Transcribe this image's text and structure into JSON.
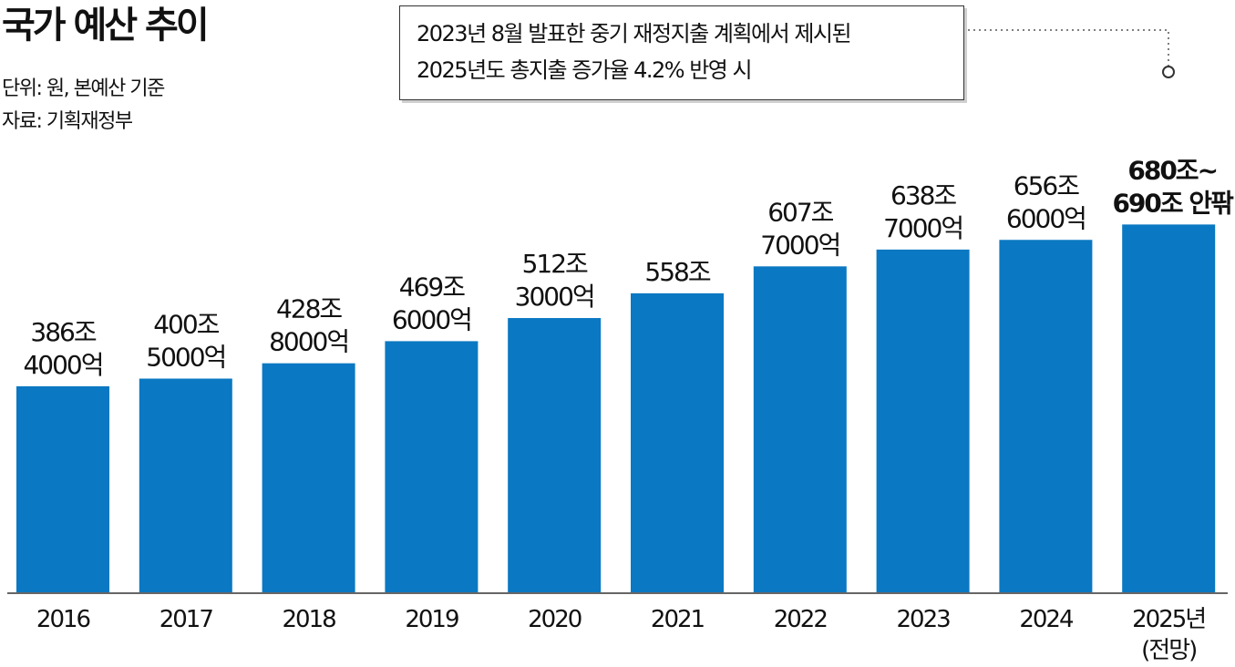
{
  "title": "국가 예산 추이",
  "unit_note": "단위: 원, 본예산 기준",
  "source_note": "자료: 기획재정부",
  "callout": {
    "line1": "2023년 8월 발표한 중기 재정지출 계획에서 제시된",
    "line2": "2025년도 총지출 증가율 4.2% 반영 시"
  },
  "colors": {
    "bar": "#0a78c2",
    "text": "#111111",
    "axis": "#333333",
    "leader": "#555555"
  },
  "chart_data": {
    "type": "bar",
    "title": "국가 예산 추이",
    "xlabel": "",
    "ylabel": "",
    "unit": "원",
    "categories": [
      "2016",
      "2017",
      "2018",
      "2019",
      "2020",
      "2021",
      "2022",
      "2023",
      "2024",
      "2025년 (전망)"
    ],
    "category_lines": [
      [
        "2016"
      ],
      [
        "2017"
      ],
      [
        "2018"
      ],
      [
        "2019"
      ],
      [
        "2020"
      ],
      [
        "2021"
      ],
      [
        "2022"
      ],
      [
        "2023"
      ],
      [
        "2024"
      ],
      [
        "2025년",
        "(전망)"
      ]
    ],
    "values_trillion_won": [
      386.4,
      400.5,
      428.8,
      469.6,
      512.3,
      558.0,
      607.7,
      638.7,
      656.6,
      685.0
    ],
    "value_labels": [
      [
        "386조",
        "4000억"
      ],
      [
        "400조",
        "5000억"
      ],
      [
        "428조",
        "8000억"
      ],
      [
        "469조",
        "6000억"
      ],
      [
        "512조",
        "3000억"
      ],
      [
        "558조"
      ],
      [
        "607조",
        "7000억"
      ],
      [
        "638조",
        "7000억"
      ],
      [
        "656조",
        "6000억"
      ],
      [
        "680조~",
        "690조 안팎"
      ]
    ],
    "emphasized_index": 9,
    "grid": false,
    "legend": "none"
  }
}
